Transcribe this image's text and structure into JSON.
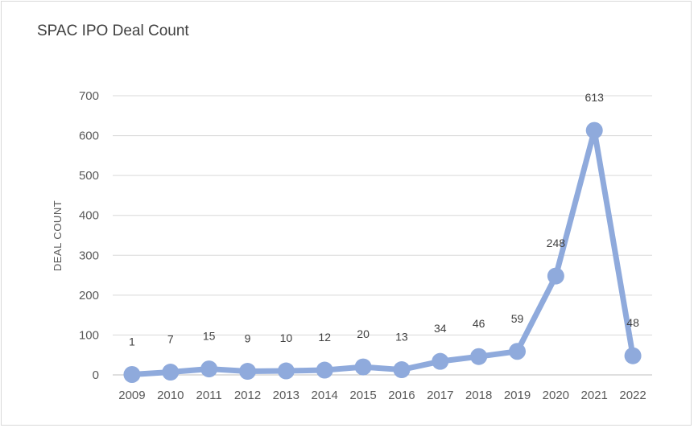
{
  "chart_data": {
    "type": "line",
    "title": "SPAC IPO Deal Count",
    "xlabel": "",
    "ylabel": "DEAL COUNT",
    "categories": [
      "2009",
      "2010",
      "2011",
      "2012",
      "2013",
      "2014",
      "2015",
      "2016",
      "2017",
      "2018",
      "2019",
      "2020",
      "2021",
      "2022"
    ],
    "series": [
      {
        "values": [
          1,
          7,
          15,
          9,
          10,
          12,
          20,
          13,
          34,
          46,
          59,
          248,
          613,
          48
        ]
      }
    ],
    "data_labels": [
      "1",
      "7",
      "15",
      "9",
      "10",
      "12",
      "20",
      "13",
      "34",
      "46",
      "59",
      "248",
      "613",
      "48"
    ],
    "ylim": [
      0,
      700
    ],
    "yticks": [
      "0",
      "100",
      "200",
      "300",
      "400",
      "500",
      "600",
      "700"
    ],
    "grid": true,
    "legend": "none",
    "colors": {
      "line": "#8faadc",
      "grid": "#d9d9d9",
      "text": "#595959"
    }
  }
}
